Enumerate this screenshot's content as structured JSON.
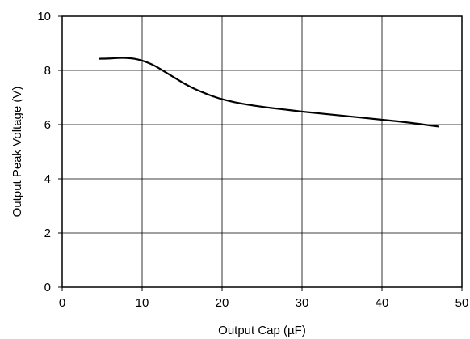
{
  "chart_data": {
    "type": "line",
    "title": "",
    "xlabel": "Output Cap (µF)",
    "ylabel": "Output Peak Voltage (V)",
    "xlim": [
      0,
      50
    ],
    "ylim": [
      0,
      10
    ],
    "grid": true,
    "xticks": [
      "0",
      "10",
      "20",
      "30",
      "40",
      "50"
    ],
    "yticks": [
      "0",
      "2",
      "4",
      "6",
      "8",
      "10"
    ],
    "series": [
      {
        "color": "#000000",
        "x": [
          4.7,
          6,
          7,
          8,
          9,
          10,
          11,
          12,
          13,
          14,
          15,
          16,
          17,
          18,
          19,
          20,
          22,
          24,
          26,
          28,
          30,
          32,
          34,
          36,
          38,
          40,
          42,
          44,
          46,
          47
        ],
        "y": [
          8.43,
          8.44,
          8.46,
          8.46,
          8.43,
          8.36,
          8.25,
          8.1,
          7.92,
          7.74,
          7.56,
          7.4,
          7.26,
          7.14,
          7.03,
          6.94,
          6.8,
          6.7,
          6.62,
          6.55,
          6.48,
          6.42,
          6.36,
          6.3,
          6.24,
          6.18,
          6.12,
          6.05,
          5.97,
          5.93
        ]
      }
    ]
  }
}
